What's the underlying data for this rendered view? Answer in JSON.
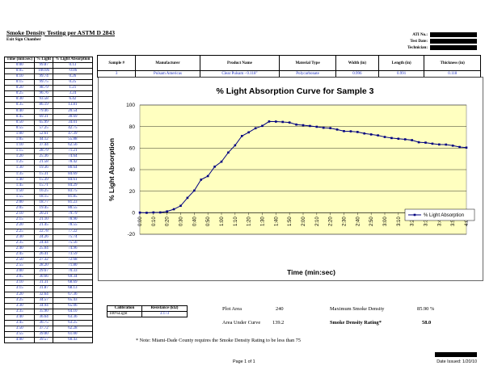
{
  "header": {
    "title": "Smoke Density Testing per ASTM D 2843",
    "subtitle": "Exit Sign Chamber",
    "meta_labels": [
      "ATI No.:",
      "Test Date:",
      "Technician:"
    ]
  },
  "time_table": {
    "headers": [
      "Time (min:sec)",
      "% Light",
      "% Light Absorption"
    ],
    "rows": [
      [
        "0:00",
        "99.87",
        "0.13"
      ],
      [
        "0:05",
        "100.06",
        "-0.06"
      ],
      [
        "0:10",
        "99.74",
        "0.26"
      ],
      [
        "0:15",
        "99.75",
        "0.25"
      ],
      [
        "0:20",
        "98.79",
        "1.21"
      ],
      [
        "0:25",
        "96.76",
        "3.24"
      ],
      [
        "0:30",
        "93.58",
        "6.42"
      ],
      [
        "0:35",
        "86.19",
        "13.81"
      ],
      [
        "0:40",
        "79.46",
        "20.54"
      ],
      [
        "0:45",
        "69.31",
        "30.69"
      ],
      [
        "0:50",
        "65.99",
        "34.01"
      ],
      [
        "0:55",
        "57.25",
        "42.75"
      ],
      [
        "1:00",
        "52.61",
        "47.39"
      ],
      [
        "1:05",
        "44.12",
        "55.88"
      ],
      [
        "1:10",
        "37.44",
        "62.56"
      ],
      [
        "1:15",
        "28.79",
        "71.21"
      ],
      [
        "1:20",
        "25.36",
        "74.64"
      ],
      [
        "1:25",
        "21.58",
        "78.42"
      ],
      [
        "1:30",
        "19.36",
        "80.64"
      ],
      [
        "1:35",
        "15.31",
        "84.69"
      ],
      [
        "1:40",
        "15.39",
        "84.61"
      ],
      [
        "1:45",
        "15.71",
        "84.29"
      ],
      [
        "1:50",
        "16.25",
        "83.75"
      ],
      [
        "1:55",
        "18.15",
        "81.85"
      ],
      [
        "2:00",
        "18.77",
        "81.23"
      ],
      [
        "2:05",
        "19.45",
        "80.55"
      ],
      [
        "2:10",
        "20.21",
        "79.79"
      ],
      [
        "2:15",
        "21.10",
        "78.90"
      ],
      [
        "2:20",
        "21.45",
        "78.55"
      ],
      [
        "2:25",
        "22.78",
        "77.22"
      ],
      [
        "2:30",
        "24.26",
        "75.74"
      ],
      [
        "2:35",
        "24.44",
        "75.56"
      ],
      [
        "2:40",
        "25.04",
        "74.96"
      ],
      [
        "2:45",
        "26.41",
        "73.59"
      ],
      [
        "2:50",
        "27.32",
        "72.68"
      ],
      [
        "2:55",
        "28.20",
        "71.80"
      ],
      [
        "3:00",
        "29.67",
        "70.33"
      ],
      [
        "3:05",
        "30.66",
        "69.34"
      ],
      [
        "3:10",
        "31.31",
        "68.69"
      ],
      [
        "3:15",
        "31.87",
        "68.13"
      ],
      [
        "3:20",
        "32.64",
        "67.36"
      ],
      [
        "3:25",
        "34.57",
        "65.43"
      ],
      [
        "3:30",
        "34.94",
        "65.06"
      ],
      [
        "3:35",
        "35.90",
        "64.10"
      ],
      [
        "3:40",
        "36.64",
        "63.36"
      ],
      [
        "3:45",
        "36.75",
        "63.25"
      ],
      [
        "3:50",
        "37.72",
        "62.28"
      ],
      [
        "3:55",
        "39.00",
        "61.00"
      ],
      [
        "4:00",
        "39.57",
        "60.43"
      ]
    ]
  },
  "sample_table": {
    "headers": [
      "Sample #",
      "Manufacturer",
      "Product Name",
      "Material Type",
      "Width (in)",
      "Length (in)",
      "Thickness (in)"
    ],
    "row": [
      "3",
      "Pulsam Americas",
      "Clear Pulsam - 0.118\"",
      "Polycarbonate",
      "0.996",
      "0.991",
      "0.118"
    ]
  },
  "chart_data": {
    "type": "line",
    "title": "% Light Absorption Curve for Sample 3",
    "xlabel": "Time (min:sec)",
    "ylabel": "% Light Absorption",
    "ylim": [
      -20,
      100
    ],
    "yticks": [
      -20,
      0,
      20,
      40,
      60,
      80,
      100
    ],
    "grid": true,
    "legend_position": "right",
    "categories": [
      "0:00",
      "0:05",
      "0:10",
      "0:15",
      "0:20",
      "0:25",
      "0:30",
      "0:35",
      "0:40",
      "0:45",
      "0:50",
      "0:55",
      "1:00",
      "1:05",
      "1:10",
      "1:15",
      "1:20",
      "1:25",
      "1:30",
      "1:35",
      "1:40",
      "1:45",
      "1:50",
      "1:55",
      "2:00",
      "2:05",
      "2:10",
      "2:15",
      "2:20",
      "2:25",
      "2:30",
      "2:35",
      "2:40",
      "2:45",
      "2:50",
      "2:55",
      "3:00",
      "3:05",
      "3:10",
      "3:15",
      "3:20",
      "3:25",
      "3:30",
      "3:35",
      "3:40",
      "3:45",
      "3:50",
      "3:55",
      "4:00"
    ],
    "tick_labels": [
      "0:00",
      "0:10",
      "0:20",
      "0:30",
      "0:40",
      "0:50",
      "1:00",
      "1:10",
      "1:20",
      "1:30",
      "1:40",
      "1:50",
      "2:00",
      "2:10",
      "2:20",
      "2:30",
      "2:40",
      "2:50",
      "3:00",
      "3:10",
      "3:20",
      "3:30",
      "3:40",
      "3:50",
      "4:00"
    ],
    "series": [
      {
        "name": "% Light Absorption",
        "color": "#000080",
        "values": [
          0.13,
          -0.06,
          0.26,
          0.25,
          1.21,
          3.24,
          6.42,
          13.81,
          20.54,
          30.69,
          34.01,
          42.75,
          47.39,
          55.88,
          62.56,
          71.21,
          74.64,
          78.42,
          80.64,
          84.69,
          84.61,
          84.29,
          83.75,
          81.85,
          81.23,
          80.55,
          79.79,
          78.9,
          78.55,
          77.22,
          75.74,
          75.56,
          74.96,
          73.59,
          72.68,
          71.8,
          70.33,
          69.34,
          68.69,
          68.13,
          67.36,
          65.43,
          65.06,
          64.1,
          63.36,
          63.25,
          62.28,
          61.0,
          60.43
        ]
      }
    ],
    "plot_bg": "#ffffc0"
  },
  "calibration": {
    "headers": [
      "Calibration",
      "Resistance (kΩ)"
    ],
    "row": [
      "100%Light",
      "3.173"
    ]
  },
  "stats": {
    "plot_area_label": "Plot Area",
    "plot_area_value": "240",
    "area_under_label": "Area Under Curve",
    "area_under_value": "139.2",
    "max_density_label": "Maximum Smoke Density",
    "max_density_value": "85.90 %",
    "rating_label": "Smoke Density Rating*",
    "rating_value": "58.0"
  },
  "note": "* Note:  Miami-Dade County requires the Smoke Density Rating to be less than 75",
  "footer": {
    "page": "Page 1 of 1",
    "date_issued": "Date Issued:  1/20/10"
  }
}
